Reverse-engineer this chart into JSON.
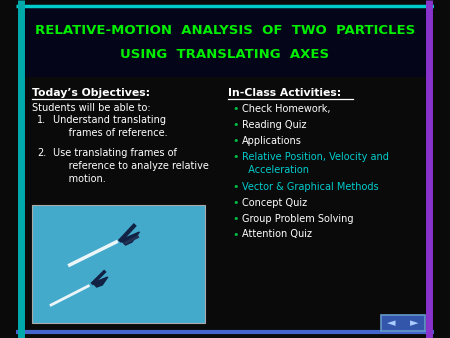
{
  "background_color": "#0a0a0a",
  "title_line1": "RELATIVE-MOTION  ANALYSIS  OF  TWO  PARTICLES",
  "title_line2": "USING  TRANSLATING  AXES",
  "title_color": "#00ee00",
  "title_fontsize": 9.5,
  "title_bg_color": "#0a0a18",
  "border_top_color": "#00cccc",
  "border_left_color": "#00aaaa",
  "border_right_color": "#8833cc",
  "border_bottom_color": "#4466cc",
  "objectives_header": "Today’s Objectives:",
  "objectives_header_color": "#ffffff",
  "objectives_intro": "Students will be able to:",
  "objectives_intro_color": "#ffffff",
  "objectives_color": "#ffffff",
  "obj1_num": "1.",
  "obj1_text": "Understand translating\n     frames of reference.",
  "obj2_num": "2.",
  "obj2_text": "Use translating frames of\n     reference to analyze relative\n     motion.",
  "image_bg": "#44aacc",
  "activities_header": "In-Class Activities:",
  "activities_header_color": "#ffffff",
  "activities": [
    {
      "text": "Check Homework,",
      "color": "#ffffff"
    },
    {
      "text": "Reading Quiz",
      "color": "#ffffff"
    },
    {
      "text": "Applications",
      "color": "#ffffff"
    },
    {
      "text": "Relative Position, Velocity and\n  Acceleration",
      "color": "#00cccc"
    },
    {
      "text": "Vector & Graphical Methods",
      "color": "#00cccc"
    },
    {
      "text": "Concept Quiz",
      "color": "#ffffff"
    },
    {
      "text": "Group Problem Solving",
      "color": "#ffffff"
    },
    {
      "text": "Attention Quiz",
      "color": "#ffffff"
    }
  ],
  "bullet_color": "#00bb44",
  "nav_bg": "#3355aa",
  "nav_border": "#6699cc",
  "nav_arrow_color": "#aaccff",
  "fontsize_body": 7.0,
  "fontsize_header": 7.8
}
